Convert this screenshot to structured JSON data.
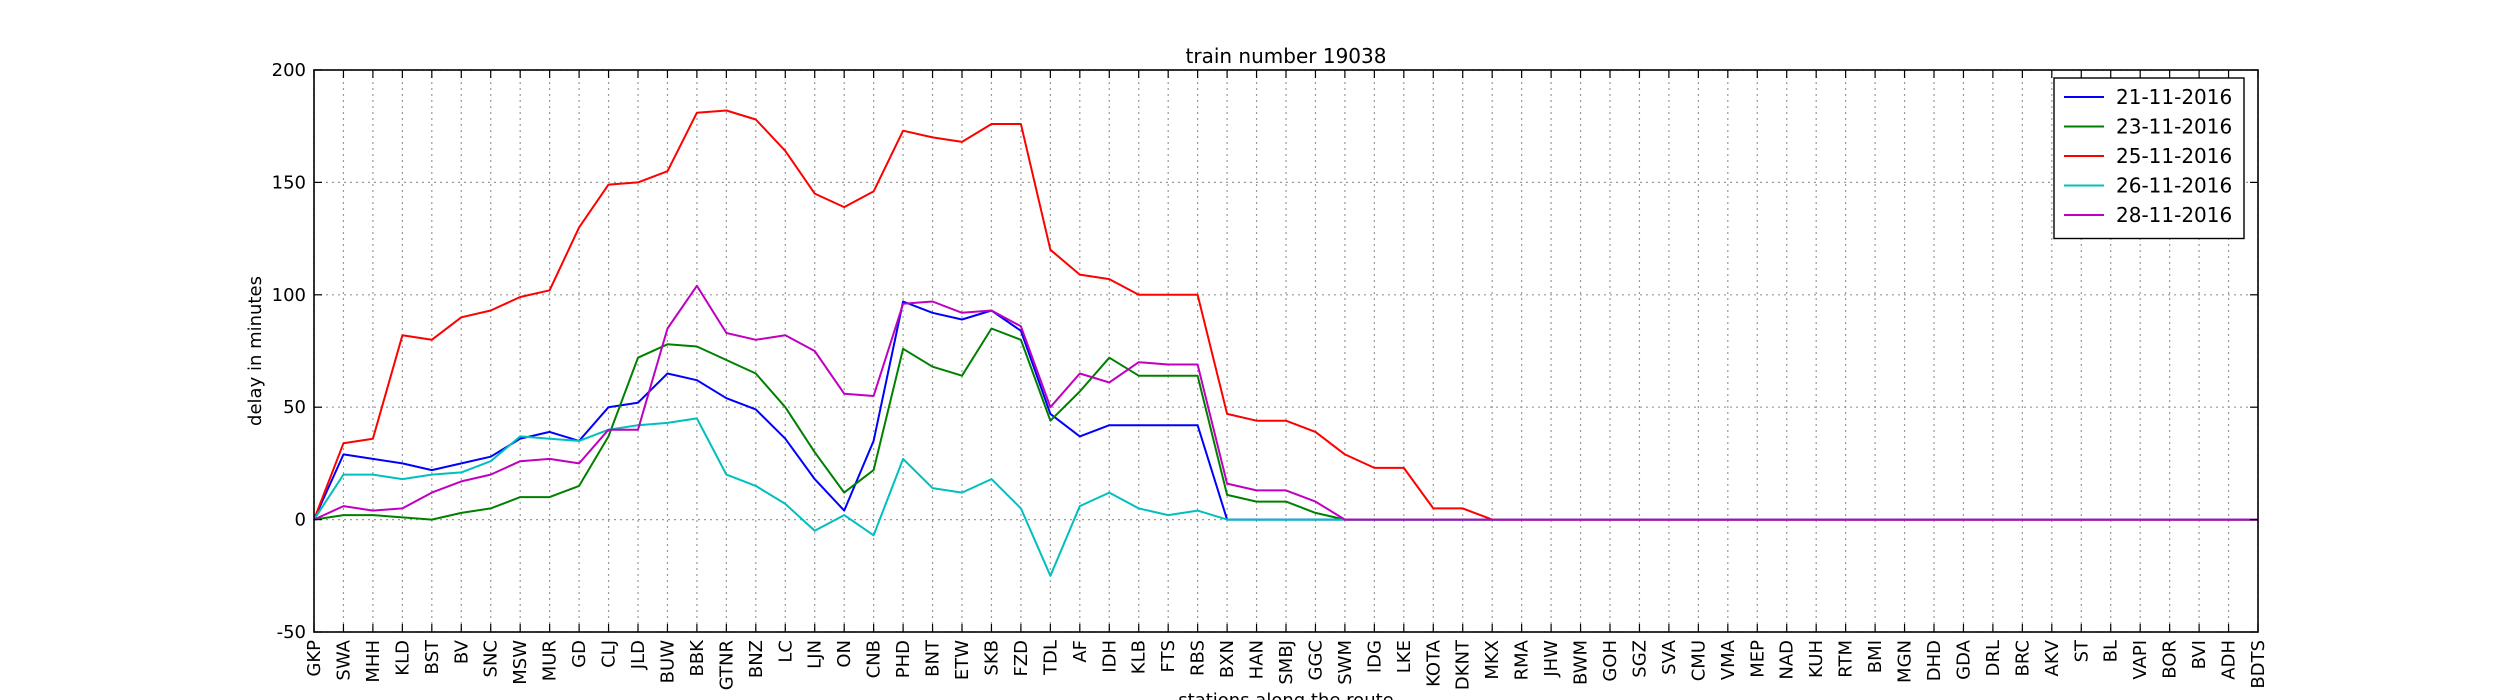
{
  "chart_data": {
    "type": "line",
    "title": "train number 19038",
    "xlabel": "stations along the route",
    "ylabel": "delay in minutes",
    "ylim": [
      -50,
      200
    ],
    "yticks": [
      -50,
      0,
      50,
      100,
      150,
      200
    ],
    "grid": true,
    "legend_position": "top-right",
    "categories": [
      "GKP",
      "SWA",
      "MHH",
      "KLD",
      "BST",
      "BV",
      "SNC",
      "MSW",
      "MUR",
      "GD",
      "CLJ",
      "JLD",
      "BUW",
      "BBK",
      "GTNR",
      "BNZ",
      "LC",
      "LJN",
      "ON",
      "CNB",
      "PHD",
      "BNT",
      "ETW",
      "SKB",
      "FZD",
      "TDL",
      "AF",
      "IDH",
      "KLB",
      "FTS",
      "RBS",
      "BXN",
      "HAN",
      "SMBJ",
      "GGC",
      "SWM",
      "IDG",
      "LKE",
      "KOTA",
      "DKNT",
      "MKX",
      "RMA",
      "JHW",
      "BWM",
      "GOH",
      "SGZ",
      "SVA",
      "CMU",
      "VMA",
      "MEP",
      "NAD",
      "KUH",
      "RTM",
      "BMI",
      "MGN",
      "DHD",
      "GDA",
      "DRL",
      "BRC",
      "AKV",
      "ST",
      "BL",
      "VAPI",
      "BOR",
      "BVI",
      "ADH",
      "BDTS"
    ],
    "series": [
      {
        "name": "21-11-2016",
        "color": "#0000ff",
        "values": [
          0,
          29,
          27,
          25,
          22,
          25,
          28,
          36,
          39,
          35,
          50,
          52,
          65,
          62,
          54,
          49,
          36,
          18,
          4,
          35,
          97,
          92,
          89,
          93,
          84,
          47,
          37,
          42,
          42,
          42,
          42,
          0,
          0,
          0,
          0,
          0,
          0,
          0,
          0,
          0,
          0,
          0,
          0,
          0,
          0,
          0,
          0,
          0,
          0,
          0,
          0,
          0,
          0,
          0,
          0,
          0,
          0,
          0,
          0,
          0,
          0,
          0,
          0,
          0,
          0,
          0,
          0
        ]
      },
      {
        "name": "23-11-2016",
        "color": "#008000",
        "values": [
          0,
          2,
          2,
          1,
          0,
          3,
          5,
          10,
          10,
          15,
          37,
          72,
          78,
          77,
          71,
          65,
          50,
          30,
          12,
          22,
          76,
          68,
          64,
          85,
          80,
          44,
          57,
          72,
          64,
          64,
          64,
          11,
          8,
          8,
          3,
          0,
          0,
          0,
          0,
          0,
          0,
          0,
          0,
          0,
          0,
          0,
          0,
          0,
          0,
          0,
          0,
          0,
          0,
          0,
          0,
          0,
          0,
          0,
          0,
          0,
          0,
          0,
          0,
          0,
          0,
          0,
          0
        ]
      },
      {
        "name": "25-11-2016",
        "color": "#ff0000",
        "values": [
          0,
          34,
          36,
          82,
          80,
          90,
          93,
          99,
          102,
          130,
          149,
          150,
          155,
          181,
          182,
          178,
          164,
          145,
          139,
          146,
          173,
          170,
          168,
          176,
          176,
          120,
          109,
          107,
          100,
          100,
          100,
          47,
          44,
          44,
          39,
          29,
          23,
          23,
          5,
          5,
          0,
          0,
          0,
          0,
          0,
          0,
          0,
          0,
          0,
          0,
          0,
          0,
          0,
          0,
          0,
          0,
          0,
          0,
          0,
          0,
          0,
          0,
          0,
          0,
          0,
          0,
          0
        ]
      },
      {
        "name": "26-11-2016",
        "color": "#00bfbf",
        "values": [
          0,
          20,
          20,
          18,
          20,
          21,
          26,
          37,
          36,
          35,
          40,
          42,
          43,
          45,
          20,
          15,
          7,
          -5,
          2,
          -7,
          27,
          14,
          12,
          18,
          5,
          -25,
          6,
          12,
          5,
          2,
          4,
          0,
          0,
          0,
          0,
          0,
          0,
          0,
          0,
          0,
          0,
          0,
          0,
          0,
          0,
          0,
          0,
          0,
          0,
          0,
          0,
          0,
          0,
          0,
          0,
          0,
          0,
          0,
          0,
          0,
          0,
          0,
          0,
          0,
          0,
          0,
          0
        ]
      },
      {
        "name": "28-11-2016",
        "color": "#bf00bf",
        "values": [
          0,
          6,
          4,
          5,
          12,
          17,
          20,
          26,
          27,
          25,
          40,
          40,
          85,
          104,
          83,
          80,
          82,
          75,
          56,
          55,
          96,
          97,
          92,
          93,
          86,
          50,
          65,
          61,
          70,
          69,
          69,
          16,
          13,
          13,
          8,
          0,
          0,
          0,
          0,
          0,
          0,
          0,
          0,
          0,
          0,
          0,
          0,
          0,
          0,
          0,
          0,
          0,
          0,
          0,
          0,
          0,
          0,
          0,
          0,
          0,
          0,
          0,
          0,
          0,
          0,
          0,
          0
        ]
      }
    ]
  }
}
